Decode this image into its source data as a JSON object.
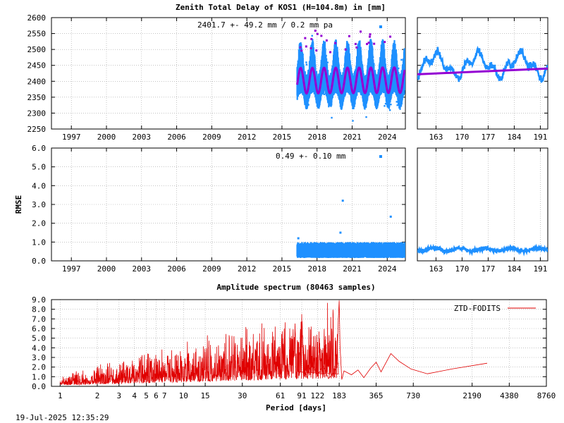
{
  "title": "Zenith Total Delay of KOS1 (H=104.8m) in [mm]",
  "timestamp": "19-Jul-2025 12:35:29",
  "colors": {
    "obs": "#1e90ff",
    "model": "#9400d3",
    "spectrum": "#e00000",
    "grid": "#a0a0a0"
  },
  "chart_data": [
    {
      "id": "ztd_long",
      "type": "scatter",
      "annotation": "2401.7 +-  49.2 mm /  0.2 mm pa",
      "xlim": [
        1995.3,
        2025.55
      ],
      "ylim": [
        2250,
        2600
      ],
      "xticks": [
        1997,
        2000,
        2003,
        2006,
        2009,
        2012,
        2015,
        2018,
        2021,
        2024
      ],
      "yticks": [
        2250,
        2300,
        2350,
        2400,
        2450,
        2500,
        2550,
        2600
      ],
      "grid": true,
      "series": [
        {
          "role": "observations",
          "x_start": 2016.3,
          "x_end": 2025.5,
          "mean": 2401.7,
          "amplitude": 40,
          "scatter_range": [
            2255,
            2560
          ]
        },
        {
          "role": "model",
          "x_start": 2016.3,
          "x_end": 2025.5,
          "mean": 2401.7,
          "amplitude": 40,
          "trend_mm_pa": 0.2
        }
      ]
    },
    {
      "id": "ztd_recent",
      "type": "scatter",
      "xlim": [
        158,
        193
      ],
      "ylim": [
        2250,
        2600
      ],
      "xticks": [
        163,
        170,
        177,
        184,
        191
      ],
      "grid": true,
      "series": [
        {
          "role": "observations",
          "range": [
            2405,
            2500
          ]
        },
        {
          "role": "model",
          "start": 2422,
          "end": 2440
        }
      ]
    },
    {
      "id": "rmse_long",
      "type": "scatter",
      "ylabel": "RMSE",
      "annotation": "0.49 +-  0.10 mm",
      "xlim": [
        1995.3,
        2025.55
      ],
      "ylim": [
        0,
        6
      ],
      "xticks": [
        1997,
        2000,
        2003,
        2006,
        2009,
        2012,
        2015,
        2018,
        2021,
        2024
      ],
      "yticks": [
        0.0,
        1.0,
        2.0,
        3.0,
        4.0,
        5.0,
        6.0
      ],
      "grid": true,
      "series": [
        {
          "role": "rmse",
          "x_start": 2016.3,
          "x_end": 2025.5,
          "typical": 0.5,
          "outliers": [
            [
              2016.4,
              1.2
            ],
            [
              2020.0,
              1.5
            ],
            [
              2020.2,
              3.2
            ],
            [
              2024.3,
              2.35
            ]
          ]
        }
      ]
    },
    {
      "id": "rmse_recent",
      "type": "scatter",
      "xlim": [
        158,
        193
      ],
      "ylim": [
        0,
        6
      ],
      "xticks": [
        163,
        170,
        177,
        184,
        191
      ],
      "grid": true,
      "series": [
        {
          "role": "rmse",
          "typical": 0.6
        }
      ]
    },
    {
      "id": "spectrum",
      "type": "line",
      "title": "Amplitude spectrum (80463 samples)",
      "xlabel": "Period [days]",
      "legend": "ZTD-FODITS",
      "legend_position": "top-right",
      "xscale": "log",
      "xlim": [
        0.85,
        8760
      ],
      "ylim": [
        0,
        9
      ],
      "xticks": [
        1,
        2,
        3,
        4,
        5,
        6,
        7,
        10,
        15,
        30,
        61,
        91,
        122,
        183,
        365,
        730,
        2190,
        4380,
        8760
      ],
      "yticks": [
        0.0,
        1.0,
        2.0,
        3.0,
        4.0,
        5.0,
        6.0,
        7.0,
        8.0,
        9.0
      ],
      "grid": true,
      "peaks": [
        [
          91,
          6.1
        ],
        [
          183,
          8.9
        ],
        [
          365,
          2.5
        ],
        [
          480,
          3.4
        ],
        [
          2900,
          2.4
        ]
      ]
    }
  ]
}
